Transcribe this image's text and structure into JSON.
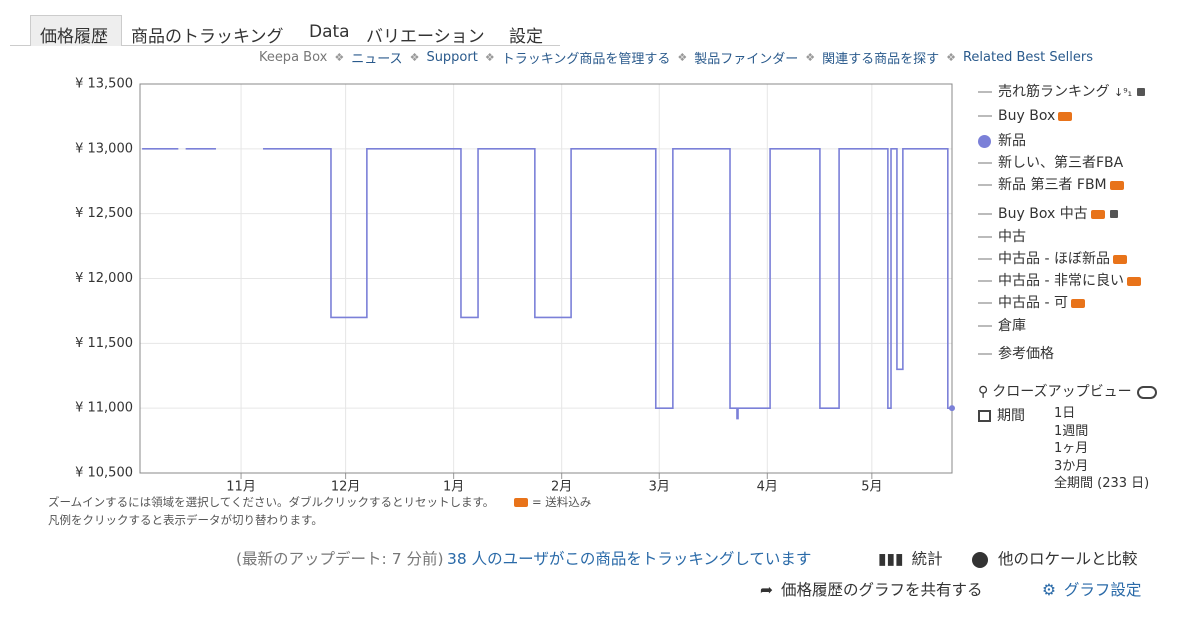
{
  "tabs": [
    "価格履歴",
    "商品のトラッキング",
    "Data",
    "バリエーション",
    "設定"
  ],
  "nav_links": [
    "Keepa Box",
    "ニュース",
    "Support",
    "トラッキング商品を管理する",
    "製品ファインダー",
    "関連する商品を探す",
    "Related Best Sellers"
  ],
  "chart_data": {
    "type": "line",
    "step": true,
    "grid": true,
    "xlim": [
      0,
      233
    ],
    "xticks": [
      {
        "value": 29,
        "label": "11月"
      },
      {
        "value": 59,
        "label": "12月"
      },
      {
        "value": 90,
        "label": "1月"
      },
      {
        "value": 121,
        "label": "2月"
      },
      {
        "value": 149,
        "label": "3月"
      },
      {
        "value": 180,
        "label": "4月"
      },
      {
        "value": 210,
        "label": "5月"
      }
    ],
    "ylim": [
      10500,
      13500
    ],
    "yticks": [
      {
        "value": 10500,
        "label": "¥ 10,500"
      },
      {
        "value": 11000,
        "label": "¥ 11,000"
      },
      {
        "value": 11500,
        "label": "¥ 11,500"
      },
      {
        "value": 12000,
        "label": "¥ 12,000"
      },
      {
        "value": 12500,
        "label": "¥ 12,500"
      },
      {
        "value": 13000,
        "label": "¥ 13,000"
      },
      {
        "value": 13500,
        "label": "¥ 13,500"
      }
    ],
    "series": [
      {
        "name": "新品",
        "color": "#7b80d8",
        "x": [
          0.6,
          11,
          null,
          13.1,
          21.8,
          null,
          35.3,
          54.8,
          65.1,
          92.1,
          97,
          113.3,
          123.7,
          148,
          152.9,
          169.3,
          171.3,
          171.6,
          180.8,
          195.1,
          200.6,
          214.6,
          215.5,
          217.2,
          218.9,
          231.8,
          233
        ],
        "values": [
          13000,
          13000,
          null,
          13000,
          13000,
          null,
          13000,
          11700,
          13000,
          11700,
          13000,
          11700,
          13000,
          11000,
          13000,
          11000,
          10920,
          11000,
          13000,
          11000,
          13000,
          11000,
          13000,
          11300,
          13000,
          11000,
          11000
        ]
      }
    ]
  },
  "legend_other": [
    "売れ筋ランキング",
    "Buy Box",
    "新しい、第三者FBA",
    "新品 第三者 FBM",
    "Buy Box 中古",
    "中古",
    "中古品 - ほぼ新品",
    "中古品 - 非常に良い",
    "中古品 - 可",
    "倉庫",
    "参考価格"
  ],
  "closeup": "クローズアップビュー",
  "period": {
    "label": "期間",
    "options": [
      "1日",
      "1週間",
      "1ヶ月",
      "3か月",
      "全期間 (233 日)"
    ]
  },
  "notes": [
    "ズームインするには領域を選択してください。ダブルクリックするとリセットします。",
    "= 送料込み",
    "凡例をクリックすると表示データが切り替わります。"
  ],
  "footer": {
    "updated": "(最新のアップデート: 7 分前)",
    "tracking": "38 人のユーザがこの商品をトラッキングしています",
    "stats": "統計",
    "compare": "他のロケールと比較",
    "share": "価格履歴のグラフを共有する",
    "settings": "グラフ設定"
  }
}
